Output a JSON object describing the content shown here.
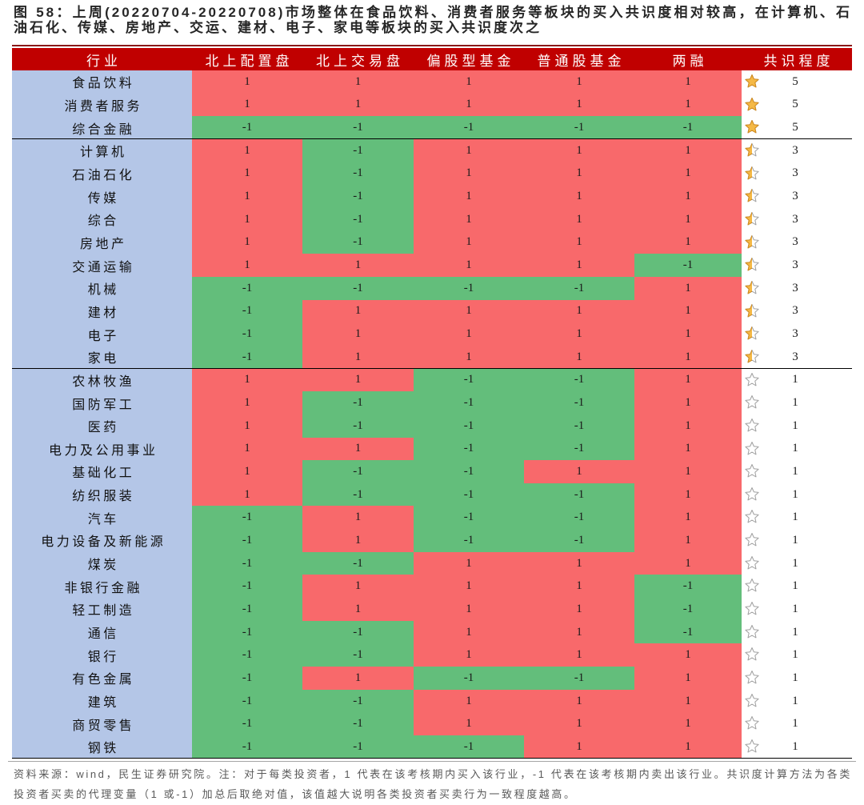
{
  "colors": {
    "title_rule": "#8B1A1A",
    "header_bg": "#C00000",
    "header_text": "#FFFFFF",
    "industry_bg": "#B4C6E7",
    "buy": "#F8696B",
    "sell": "#63BE7B",
    "consensus_bg": "#FFFFFF",
    "star_gold": "#F5B946",
    "star_gold_outline": "#D08A1E",
    "star_outline": "#A0A0A0"
  },
  "icons": {
    "5": "star-full-icon",
    "3": "star-half-icon",
    "1": "star-empty-icon"
  },
  "chart_data": {
    "type": "table",
    "title": "图 58：上周(20220704-20220708)市场整体在食品饮料、消费者服务等板块的买入共识度相对较高，在计算机、石油石化、传媒、房地产、交运、建材、电子、家电等板块的买入共识度次之",
    "columns": [
      "行业",
      "北上配置盘",
      "北上交易盘",
      "偏股型基金",
      "普通股基金",
      "两融",
      "共识程度"
    ],
    "groups": [
      {
        "rows": [
          {
            "industry": "食品饮料",
            "values": [
              1,
              1,
              1,
              1,
              1
            ],
            "consensus": 5
          },
          {
            "industry": "消费者服务",
            "values": [
              1,
              1,
              1,
              1,
              1
            ],
            "consensus": 5
          },
          {
            "industry": "综合金融",
            "values": [
              -1,
              -1,
              -1,
              -1,
              -1
            ],
            "consensus": 5
          }
        ]
      },
      {
        "rows": [
          {
            "industry": "计算机",
            "values": [
              1,
              -1,
              1,
              1,
              1
            ],
            "consensus": 3
          },
          {
            "industry": "石油石化",
            "values": [
              1,
              -1,
              1,
              1,
              1
            ],
            "consensus": 3
          },
          {
            "industry": "传媒",
            "values": [
              1,
              -1,
              1,
              1,
              1
            ],
            "consensus": 3
          },
          {
            "industry": "综合",
            "values": [
              1,
              -1,
              1,
              1,
              1
            ],
            "consensus": 3
          },
          {
            "industry": "房地产",
            "values": [
              1,
              -1,
              1,
              1,
              1
            ],
            "consensus": 3
          },
          {
            "industry": "交通运输",
            "values": [
              1,
              1,
              1,
              1,
              -1
            ],
            "consensus": 3
          },
          {
            "industry": "机械",
            "values": [
              -1,
              -1,
              -1,
              -1,
              1
            ],
            "consensus": 3
          },
          {
            "industry": "建材",
            "values": [
              -1,
              1,
              1,
              1,
              1
            ],
            "consensus": 3
          },
          {
            "industry": "电子",
            "values": [
              -1,
              1,
              1,
              1,
              1
            ],
            "consensus": 3
          },
          {
            "industry": "家电",
            "values": [
              -1,
              1,
              1,
              1,
              1
            ],
            "consensus": 3
          }
        ]
      },
      {
        "rows": [
          {
            "industry": "农林牧渔",
            "values": [
              1,
              1,
              -1,
              -1,
              1
            ],
            "consensus": 1
          },
          {
            "industry": "国防军工",
            "values": [
              1,
              -1,
              -1,
              -1,
              1
            ],
            "consensus": 1
          },
          {
            "industry": "医药",
            "values": [
              1,
              -1,
              -1,
              -1,
              1
            ],
            "consensus": 1
          },
          {
            "industry": "电力及公用事业",
            "values": [
              1,
              1,
              -1,
              -1,
              1
            ],
            "consensus": 1
          },
          {
            "industry": "基础化工",
            "values": [
              1,
              -1,
              -1,
              1,
              1
            ],
            "consensus": 1
          },
          {
            "industry": "纺织服装",
            "values": [
              1,
              -1,
              -1,
              -1,
              1
            ],
            "consensus": 1
          },
          {
            "industry": "汽车",
            "values": [
              -1,
              1,
              -1,
              -1,
              1
            ],
            "consensus": 1
          },
          {
            "industry": "电力设备及新能源",
            "values": [
              -1,
              1,
              -1,
              -1,
              1
            ],
            "consensus": 1
          },
          {
            "industry": "煤炭",
            "values": [
              -1,
              -1,
              1,
              1,
              1
            ],
            "consensus": 1
          },
          {
            "industry": "非银行金融",
            "values": [
              -1,
              1,
              1,
              1,
              -1
            ],
            "consensus": 1
          },
          {
            "industry": "轻工制造",
            "values": [
              -1,
              1,
              1,
              1,
              -1
            ],
            "consensus": 1
          },
          {
            "industry": "通信",
            "values": [
              -1,
              -1,
              1,
              1,
              -1
            ],
            "consensus": 1
          },
          {
            "industry": "银行",
            "values": [
              -1,
              -1,
              1,
              1,
              1
            ],
            "consensus": 1
          },
          {
            "industry": "有色金属",
            "values": [
              -1,
              1,
              -1,
              -1,
              1
            ],
            "consensus": 1
          },
          {
            "industry": "建筑",
            "values": [
              -1,
              -1,
              1,
              1,
              1
            ],
            "consensus": 1
          },
          {
            "industry": "商贸零售",
            "values": [
              -1,
              -1,
              1,
              1,
              1
            ],
            "consensus": 1
          },
          {
            "industry": "钢铁",
            "values": [
              -1,
              -1,
              -1,
              1,
              1
            ],
            "consensus": 1
          }
        ]
      }
    ],
    "note": "资料来源：wind，民生证券研究院。注：对于每类投资者，1 代表在该考核期内买入该行业，-1 代表在该考核期内卖出该行业。共识度计算方法为各类投资者买卖的代理变量（1 或-1）加总后取绝对值，该值越大说明各类投资者买卖行为一致程度越高。"
  }
}
